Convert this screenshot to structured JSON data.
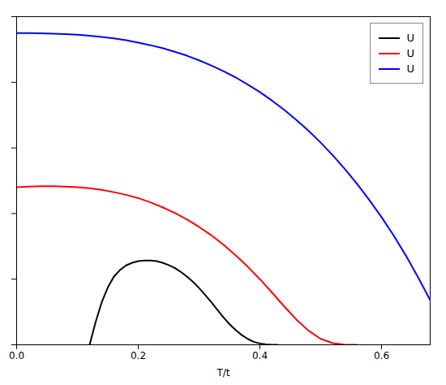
{
  "chart_data": {
    "type": "line",
    "xlabel": "T/t",
    "xlim": [
      0.0,
      0.68
    ],
    "ylim": [
      0.0,
      1.0
    ],
    "xticks": [
      {
        "value": 0.0,
        "label": "0.0"
      },
      0.2,
      0.4,
      0.6
    ],
    "yticks": [
      0.0,
      0.2,
      0.4,
      0.6,
      0.8,
      1.0
    ],
    "tick_labels": "x",
    "grid": false,
    "legend": "upper right",
    "series": [
      {
        "name": "U",
        "color": "black",
        "x": [
          0.12,
          0.13,
          0.14,
          0.15,
          0.16,
          0.17,
          0.18,
          0.19,
          0.2,
          0.21,
          0.22,
          0.23,
          0.24,
          0.25,
          0.26,
          0.27,
          0.28,
          0.29,
          0.3,
          0.31,
          0.32,
          0.33,
          0.34,
          0.35,
          0.36,
          0.37,
          0.38,
          0.39,
          0.4,
          0.41,
          0.42,
          0.43
        ],
        "values": [
          0.0,
          0.07,
          0.13,
          0.175,
          0.208,
          0.228,
          0.242,
          0.25,
          0.255,
          0.257,
          0.257,
          0.255,
          0.25,
          0.243,
          0.234,
          0.222,
          0.208,
          0.192,
          0.173,
          0.152,
          0.13,
          0.107,
          0.084,
          0.063,
          0.045,
          0.03,
          0.018,
          0.009,
          0.004,
          0.001,
          0.0,
          0.0
        ]
      },
      {
        "name": "U",
        "color": "red",
        "x": [
          0.0,
          0.02,
          0.04,
          0.06,
          0.08,
          0.1,
          0.12,
          0.14,
          0.16,
          0.18,
          0.2,
          0.22,
          0.24,
          0.26,
          0.28,
          0.3,
          0.32,
          0.34,
          0.36,
          0.38,
          0.4,
          0.42,
          0.44,
          0.46,
          0.48,
          0.5,
          0.52,
          0.54,
          0.555,
          0.56
        ],
        "values": [
          0.48,
          0.482,
          0.483,
          0.483,
          0.482,
          0.48,
          0.477,
          0.472,
          0.465,
          0.457,
          0.447,
          0.434,
          0.419,
          0.402,
          0.382,
          0.359,
          0.334,
          0.305,
          0.273,
          0.238,
          0.2,
          0.159,
          0.117,
          0.077,
          0.043,
          0.018,
          0.005,
          0.0,
          0.0,
          0.0
        ]
      },
      {
        "name": "U",
        "color": "blue",
        "x": [
          0.0,
          0.02,
          0.04,
          0.06,
          0.08,
          0.1,
          0.12,
          0.14,
          0.16,
          0.18,
          0.2,
          0.22,
          0.24,
          0.26,
          0.28,
          0.3,
          0.32,
          0.34,
          0.36,
          0.38,
          0.4,
          0.42,
          0.44,
          0.46,
          0.48,
          0.5,
          0.52,
          0.54,
          0.56,
          0.58,
          0.6,
          0.62,
          0.64,
          0.66,
          0.68
        ],
        "values": [
          0.95,
          0.95,
          0.949,
          0.948,
          0.947,
          0.945,
          0.942,
          0.938,
          0.934,
          0.928,
          0.921,
          0.913,
          0.904,
          0.893,
          0.881,
          0.867,
          0.851,
          0.834,
          0.815,
          0.793,
          0.77,
          0.744,
          0.716,
          0.685,
          0.652,
          0.616,
          0.577,
          0.535,
          0.49,
          0.441,
          0.389,
          0.333,
          0.272,
          0.206,
          0.136
        ]
      }
    ]
  }
}
